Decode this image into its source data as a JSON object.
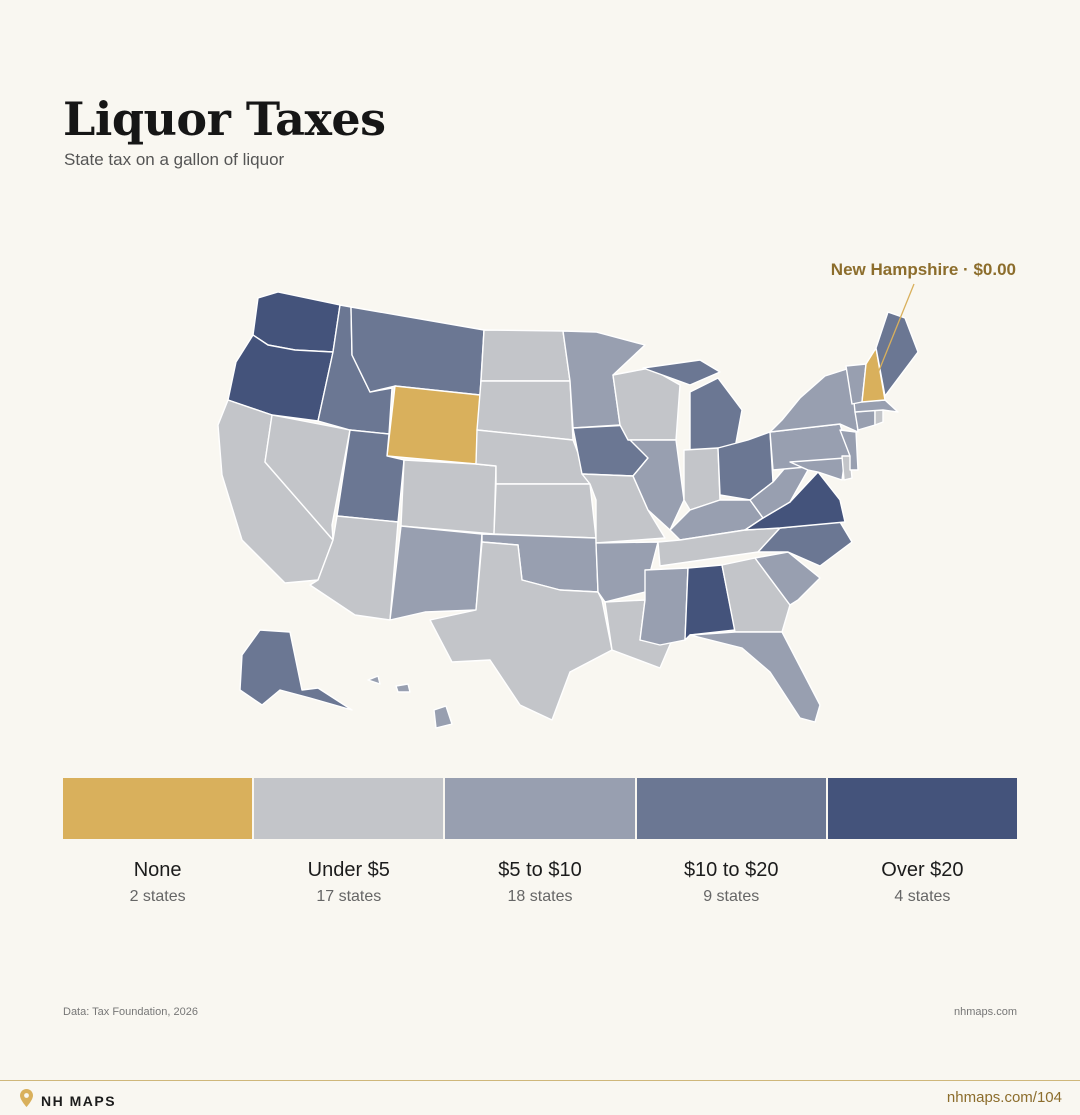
{
  "header": {
    "title": "Liquor Taxes",
    "subtitle": "State tax on a gallon of liquor"
  },
  "callout": {
    "label": "New Hampshire · $0.00",
    "state": "New Hampshire",
    "value": "$0.00"
  },
  "colors": {
    "none": "#d9b05c",
    "under5": "#c3c5c9",
    "5to10": "#989fb0",
    "10to20": "#6b7793",
    "over20": "#44537b",
    "accent": "#8c6d2c",
    "background": "#f9f7f1"
  },
  "legend": [
    {
      "key": "none",
      "label": "None",
      "count": "2 states",
      "color": "#d9b05c"
    },
    {
      "key": "under5",
      "label": "Under $5",
      "count": "17 states",
      "color": "#c3c5c9"
    },
    {
      "key": "5to10",
      "label": "$5 to $10",
      "count": "18 states",
      "color": "#989fb0"
    },
    {
      "key": "10to20",
      "label": "$10 to $20",
      "count": "9 states",
      "color": "#6b7793"
    },
    {
      "key": "over20",
      "label": "Over $20",
      "count": "4 states",
      "color": "#44537b"
    }
  ],
  "states": {
    "WA": "over20",
    "OR": "over20",
    "VA": "over20",
    "AL": "over20",
    "WY": "none",
    "NH": "none",
    "ID": "10to20",
    "MT": "10to20",
    "UT": "10to20",
    "IA": "10to20",
    "MI": "10to20",
    "OH": "10to20",
    "NC": "10to20",
    "ME": "10to20",
    "AK": "10to20",
    "NM": "5to10",
    "MN": "5to10",
    "OK": "5to10",
    "AR": "5to10",
    "IL": "5to10",
    "MS": "5to10",
    "FL": "5to10",
    "KY": "5to10",
    "WV": "5to10",
    "SC": "5to10",
    "NY": "5to10",
    "PA": "5to10",
    "VT": "5to10",
    "MD": "5to10",
    "NJ": "5to10",
    "CT": "5to10",
    "MA": "5to10",
    "HI": "5to10",
    "CA": "under5",
    "NV": "under5",
    "AZ": "under5",
    "CO": "under5",
    "ND": "under5",
    "SD": "under5",
    "NE": "under5",
    "KS": "under5",
    "TX": "under5",
    "MO": "under5",
    "LA": "under5",
    "WI": "under5",
    "IN": "under5",
    "TN": "under5",
    "GA": "under5",
    "DE": "under5",
    "RI": "under5"
  },
  "footer": {
    "source": "Data: Tax Foundation, 2026",
    "site": "nhmaps.com",
    "brand": "NH MAPS",
    "page_link": "nhmaps.com/104"
  }
}
